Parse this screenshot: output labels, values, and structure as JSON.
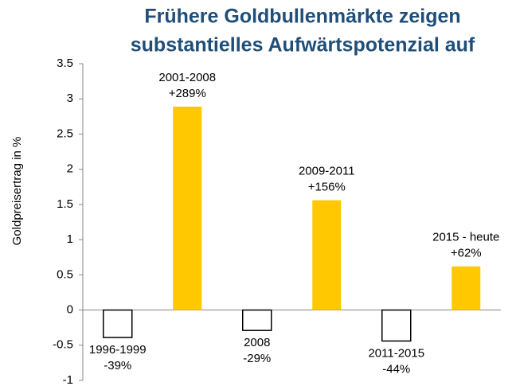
{
  "chart_data": {
    "type": "bar",
    "title": [
      "Frühere Goldbullenmärkte zeigen",
      "substantielles Aufwärtspotenzial auf"
    ],
    "ylabel": "Goldpreisertrag in %",
    "categories": [
      "1996-1999",
      "2001-2008",
      "2008",
      "2009-2011",
      "2011-2015",
      "2015 - heute"
    ],
    "values": [
      -0.39,
      2.89,
      -0.29,
      1.56,
      -0.44,
      0.62
    ],
    "value_labels": [
      "-39%",
      "+289%",
      "-29%",
      "+156%",
      "-44%",
      "+62%"
    ],
    "color": "#ffc800",
    "negative_color": "#ffffff",
    "ylim": [
      -1,
      3.5
    ],
    "yticks": [
      -1,
      -0.5,
      0,
      0.5,
      1,
      1.5,
      2,
      2.5,
      3,
      3.5
    ]
  }
}
